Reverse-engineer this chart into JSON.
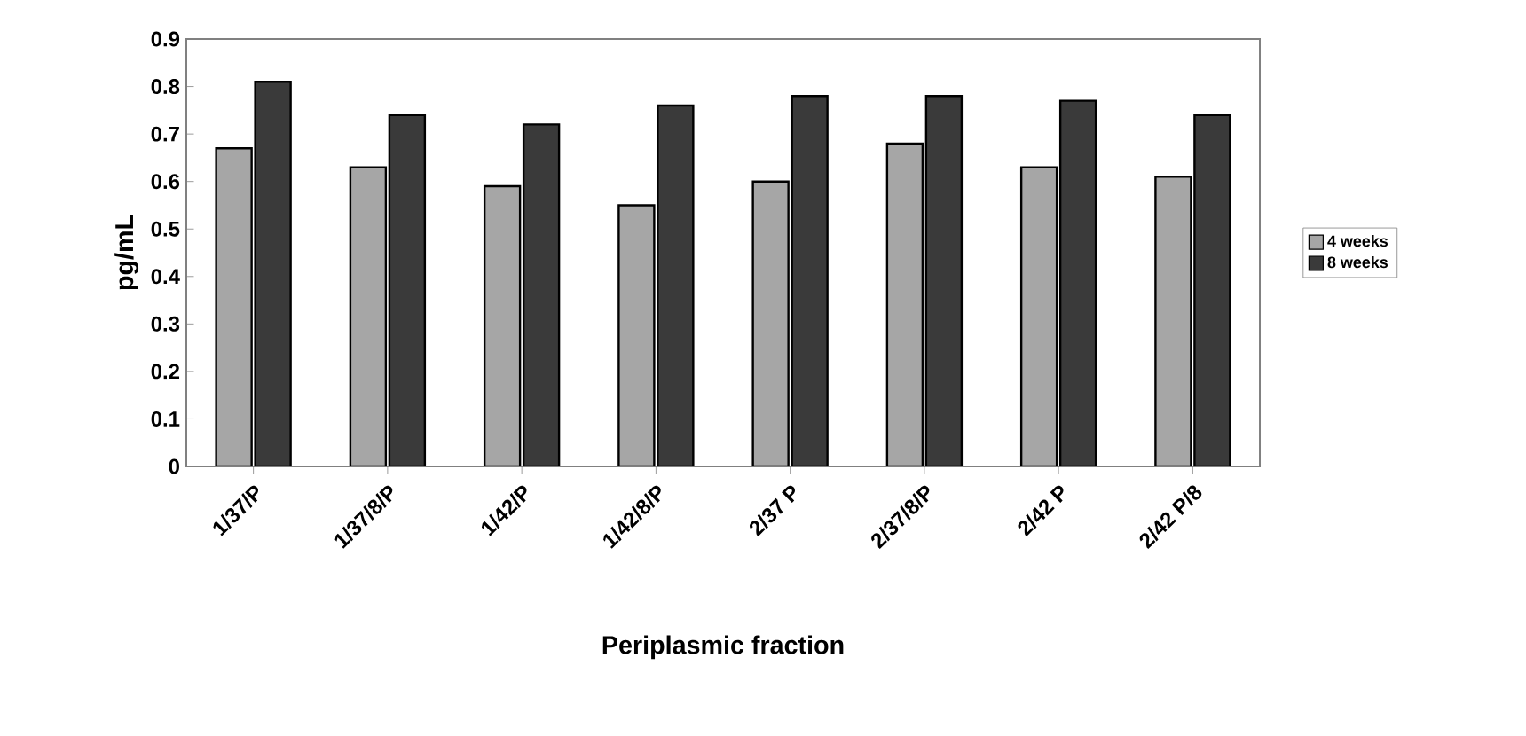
{
  "chart_data": {
    "type": "bar",
    "xlabel": "Periplasmic fraction",
    "ylabel": "pg/mL",
    "categories": [
      "1/37/P",
      "1/37/8/P",
      "1/42/P",
      "1/42/8/P",
      "2/37 P",
      "2/37/8/P",
      "2/42 P",
      "2/42 P/8"
    ],
    "series": [
      {
        "name": "4 weeks",
        "color": "#a6a6a6",
        "values": [
          0.67,
          0.63,
          0.59,
          0.55,
          0.6,
          0.68,
          0.63,
          0.61
        ]
      },
      {
        "name": "8 weeks",
        "color": "#3a3a3a",
        "values": [
          0.81,
          0.74,
          0.72,
          0.76,
          0.78,
          0.78,
          0.77,
          0.74
        ]
      }
    ],
    "ylim": [
      0,
      0.9
    ],
    "yticks": [
      0,
      0.1,
      0.2,
      0.3,
      0.4,
      0.5,
      0.6,
      0.7,
      0.8,
      0.9
    ],
    "legend": "right"
  }
}
